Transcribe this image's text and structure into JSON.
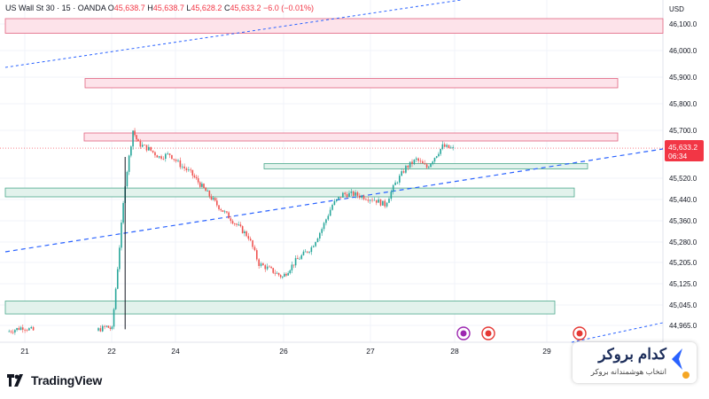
{
  "header": {
    "symbol": "US Wall St 30 · 15 · OANDA",
    "open_label": "O",
    "open": "45,638.7",
    "high_label": "H",
    "high": "45,638.7",
    "low_label": "L",
    "low": "45,628.2",
    "close_label": "C",
    "close": "45,633.2",
    "change": "−6.0 (−0.01%)"
  },
  "branding": {
    "tradingview": "TradingView"
  },
  "badge": {
    "title": "کدام بروکر",
    "subtitle": "انتخاب هوشمندانه بروکر"
  },
  "colors": {
    "up": "#26a69a",
    "down": "#ef5350",
    "wick": "#131722",
    "resistance_fill": "#fde3ea",
    "resistance_border": "#e0627f",
    "support_fill": "#e2f2ec",
    "support_border": "#4ba88c",
    "trendline": "#2962ff",
    "price_label": "#f23645"
  },
  "chart_data": {
    "type": "candlestick",
    "currency": "USD",
    "y_ticks": [
      "46,100.0",
      "46,000.0",
      "45,900.0",
      "45,800.0",
      "45,700.0",
      "45,520.0",
      "45,440.0",
      "45,360.0",
      "45,280.0",
      "45,205.0",
      "45,125.0",
      "45,045.0",
      "44,965.0"
    ],
    "x_ticks": [
      "21",
      "22",
      "24",
      "26",
      "27",
      "28",
      "29"
    ],
    "last_price": "45,633.2",
    "countdown": "06:34",
    "zones": [
      {
        "kind": "resistance",
        "top": 46120,
        "bottom": 46065
      },
      {
        "kind": "resistance",
        "top": 45895,
        "bottom": 45860
      },
      {
        "kind": "resistance",
        "top": 45690,
        "bottom": 45660
      },
      {
        "kind": "support",
        "top": 45575,
        "bottom": 45555
      },
      {
        "kind": "support",
        "top": 45483,
        "bottom": 45450
      },
      {
        "kind": "support",
        "top": 45060,
        "bottom": 45010
      }
    ],
    "price_path": [
      [
        0,
        44940
      ],
      [
        0.6,
        44958
      ],
      [
        1.0,
        44945
      ],
      [
        3.4,
        44945
      ],
      [
        3.8,
        44960
      ],
      [
        4.0,
        44950
      ],
      [
        4.5,
        45500
      ],
      [
        4.8,
        45700
      ],
      [
        5.0,
        45650
      ],
      [
        5.4,
        45630
      ],
      [
        5.8,
        45600
      ],
      [
        6.2,
        45610
      ],
      [
        6.6,
        45570
      ],
      [
        7.0,
        45540
      ],
      [
        7.5,
        45480
      ],
      [
        8.0,
        45420
      ],
      [
        8.6,
        45360
      ],
      [
        9.2,
        45300
      ],
      [
        9.6,
        45200
      ],
      [
        10.0,
        45180
      ],
      [
        10.5,
        45150
      ],
      [
        11.0,
        45210
      ],
      [
        11.6,
        45260
      ],
      [
        12.0,
        45330
      ],
      [
        12.4,
        45420
      ],
      [
        12.8,
        45460
      ],
      [
        13.2,
        45460
      ],
      [
        13.6,
        45450
      ],
      [
        14.0,
        45440
      ],
      [
        14.4,
        45420
      ],
      [
        14.8,
        45500
      ],
      [
        15.2,
        45560
      ],
      [
        15.6,
        45590
      ],
      [
        16.0,
        45560
      ],
      [
        16.3,
        45600
      ],
      [
        16.6,
        45640
      ],
      [
        17.0,
        45630
      ]
    ]
  }
}
